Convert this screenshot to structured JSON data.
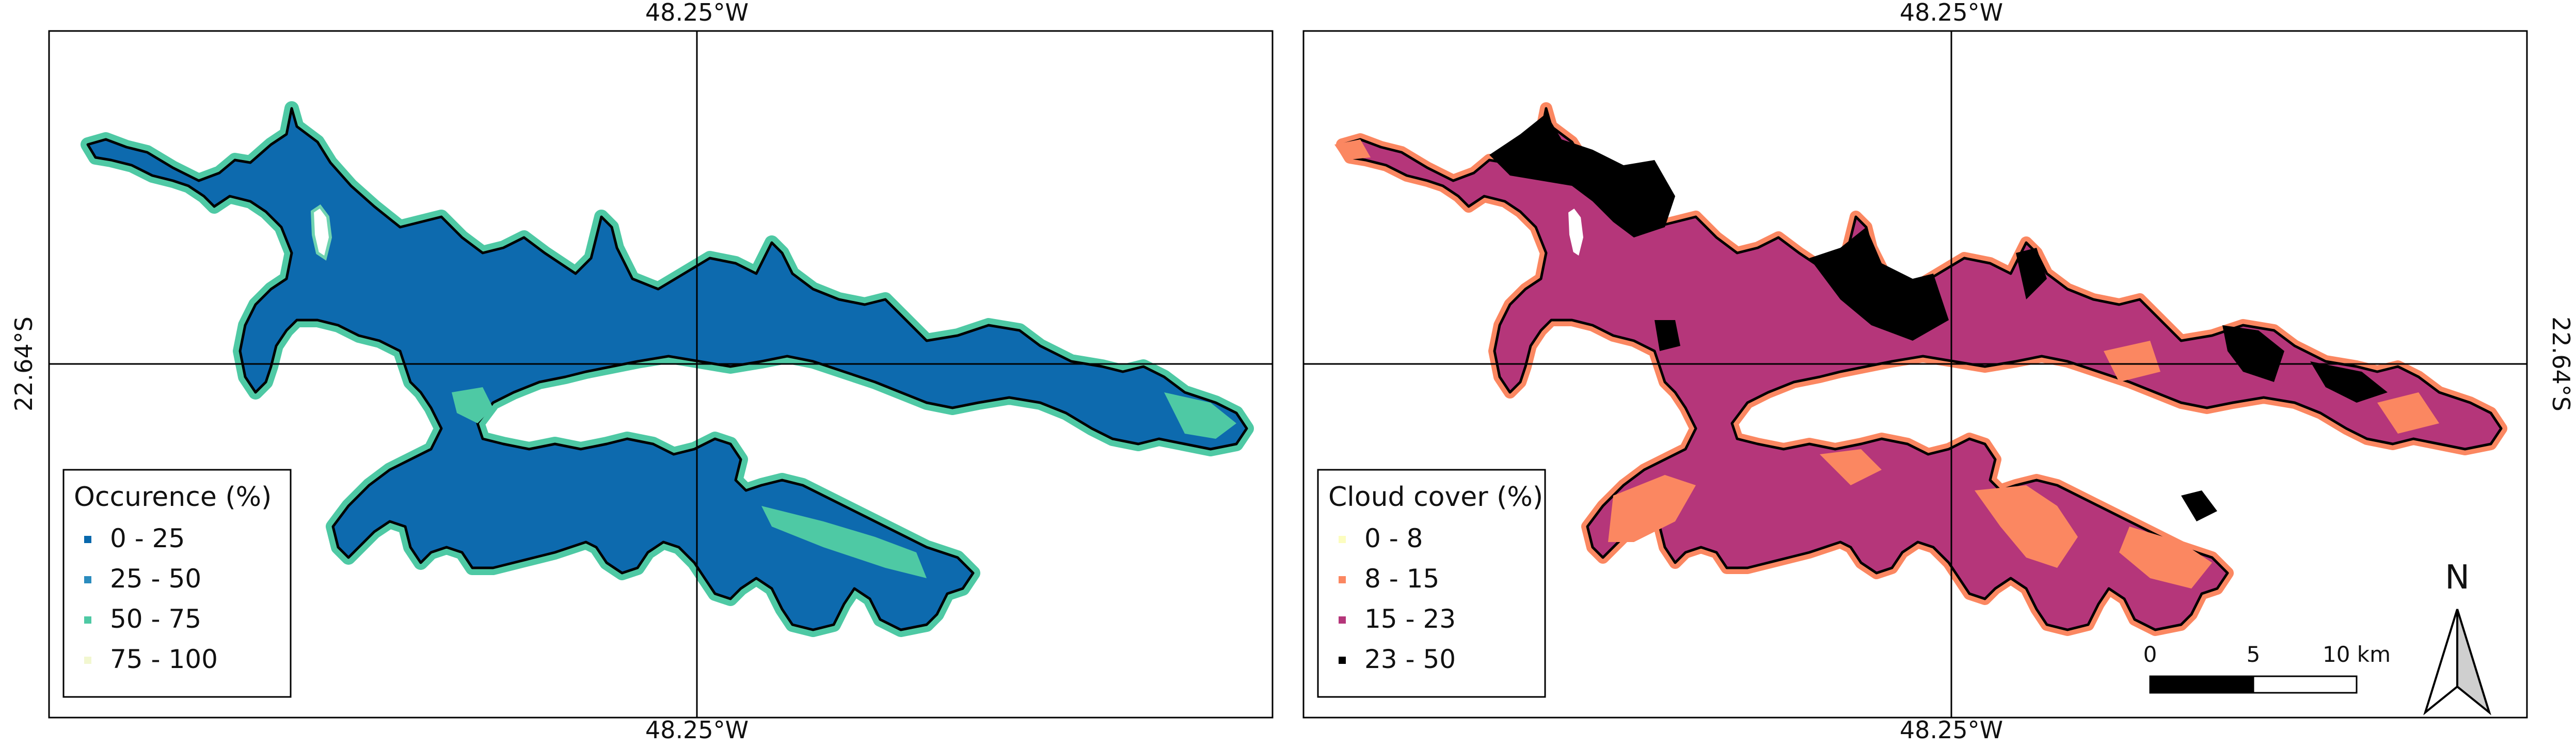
{
  "panels": [
    {
      "id": "occurrence",
      "top_coord": "48.25°W",
      "bottom_coord": "48.25°W",
      "left_coord": "22.64°S",
      "legend": {
        "title": "Occurence (%)",
        "items": [
          {
            "label": "0 - 25",
            "color": "#0868ac"
          },
          {
            "label": "25 - 50",
            "color": "#2b8cbe"
          },
          {
            "label": "50 - 75",
            "color": "#4ec9a4"
          },
          {
            "label": "75 - 100",
            "color": "#f2f7d0"
          }
        ]
      },
      "water_color": "#0d6aae",
      "edge_color": "#4ec9a4"
    },
    {
      "id": "cloud-cover",
      "top_coord": "48.25°W",
      "bottom_coord": "48.25°W",
      "right_coord": "22.64°S",
      "legend": {
        "title": "Cloud cover (%)",
        "items": [
          {
            "label": "0 - 8",
            "color": "#fcfdbf"
          },
          {
            "label": "8 - 15",
            "color": "#fb8761"
          },
          {
            "label": "15 - 23",
            "color": "#b5367a"
          },
          {
            "label": "23 - 50",
            "color": "#000000"
          }
        ]
      },
      "water_color": "#b5367a",
      "edge_color": "#fb8761"
    }
  ],
  "scale_bar": {
    "labels": [
      "0",
      "5",
      "10 km"
    ]
  },
  "north_arrow": {
    "label": "N"
  }
}
